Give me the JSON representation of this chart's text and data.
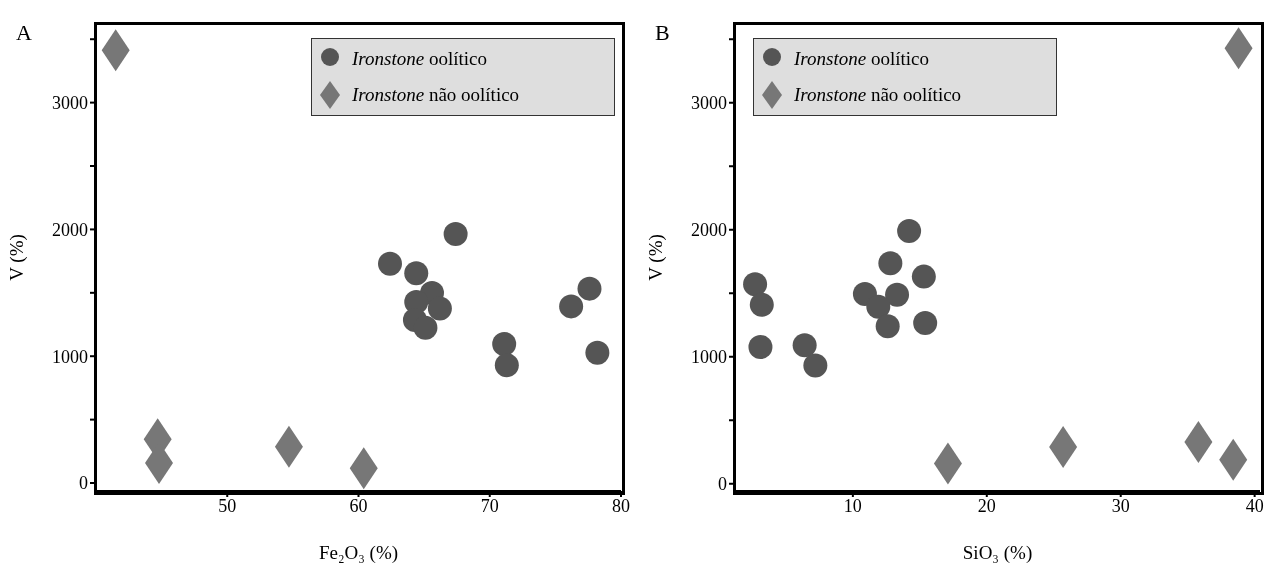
{
  "chart_data": [
    {
      "type": "scatter",
      "title": "A",
      "xlabel": "Fe₂O₃ (%)",
      "ylabel": "V (%)",
      "xlim": [
        40,
        80
      ],
      "xticks": [
        50,
        60,
        70,
        80
      ],
      "ylim": [
        -63,
        3620
      ],
      "yticks": [
        0,
        {
          "value": 500,
          "label": null
        },
        1000,
        {
          "value": 1500,
          "label": null
        },
        2000,
        {
          "value": 2500,
          "label": null
        },
        3000,
        {
          "value": 3500,
          "label": null
        }
      ],
      "legend": "top right",
      "grid": false,
      "series": [
        {
          "name": "Ironstone oolítico",
          "color": "#555555",
          "marker": "circle",
          "x": [
            62.4,
            64.4,
            67.4,
            65.6,
            64.4,
            66.2,
            64.3,
            65.1,
            71.1,
            71.3,
            76.2,
            77.6,
            78.2
          ],
          "values": [
            1729,
            1655,
            1963,
            1499,
            1427,
            1376,
            1285,
            1225,
            1097,
            929,
            1393,
            1533,
            1028
          ]
        },
        {
          "name": "Ironstone não oolítico",
          "color": "#777777",
          "marker": "diamond",
          "x": [
            41.5,
            44.7,
            44.8,
            54.7,
            60.4
          ],
          "values": [
            3413,
            345,
            157,
            285,
            117
          ]
        }
      ]
    },
    {
      "type": "scatter",
      "title": "B",
      "xlabel": "SiO₃ (%)",
      "ylabel": "V (%)",
      "xlim": [
        1.2,
        40.4
      ],
      "xticks": [
        10,
        20,
        30,
        40
      ],
      "ylim": [
        -57,
        3620
      ],
      "yticks": [
        0,
        {
          "value": 500,
          "label": null
        },
        1000,
        {
          "value": 1500,
          "label": null
        },
        2000,
        {
          "value": 2500,
          "label": null
        },
        3000,
        {
          "value": 3500,
          "label": null
        }
      ],
      "legend": "top left",
      "grid": false,
      "series": [
        {
          "name": "Ironstone oolítico",
          "color": "#555555",
          "marker": "circle",
          "x": [
            2.7,
            3.2,
            3.1,
            6.4,
            7.2,
            14.2,
            12.8,
            15.3,
            10.9,
            13.3,
            11.9,
            12.6,
            15.4
          ],
          "values": [
            1571,
            1409,
            1077,
            1091,
            931,
            1991,
            1737,
            1631,
            1494,
            1489,
            1394,
            1240,
            1266
          ]
        },
        {
          "name": "Ironstone não oolítico",
          "color": "#777777",
          "marker": "diamond",
          "x": [
            38.8,
            17.1,
            25.7,
            35.8,
            38.4
          ],
          "values": [
            3429,
            160,
            289,
            329,
            189
          ]
        }
      ]
    }
  ]
}
